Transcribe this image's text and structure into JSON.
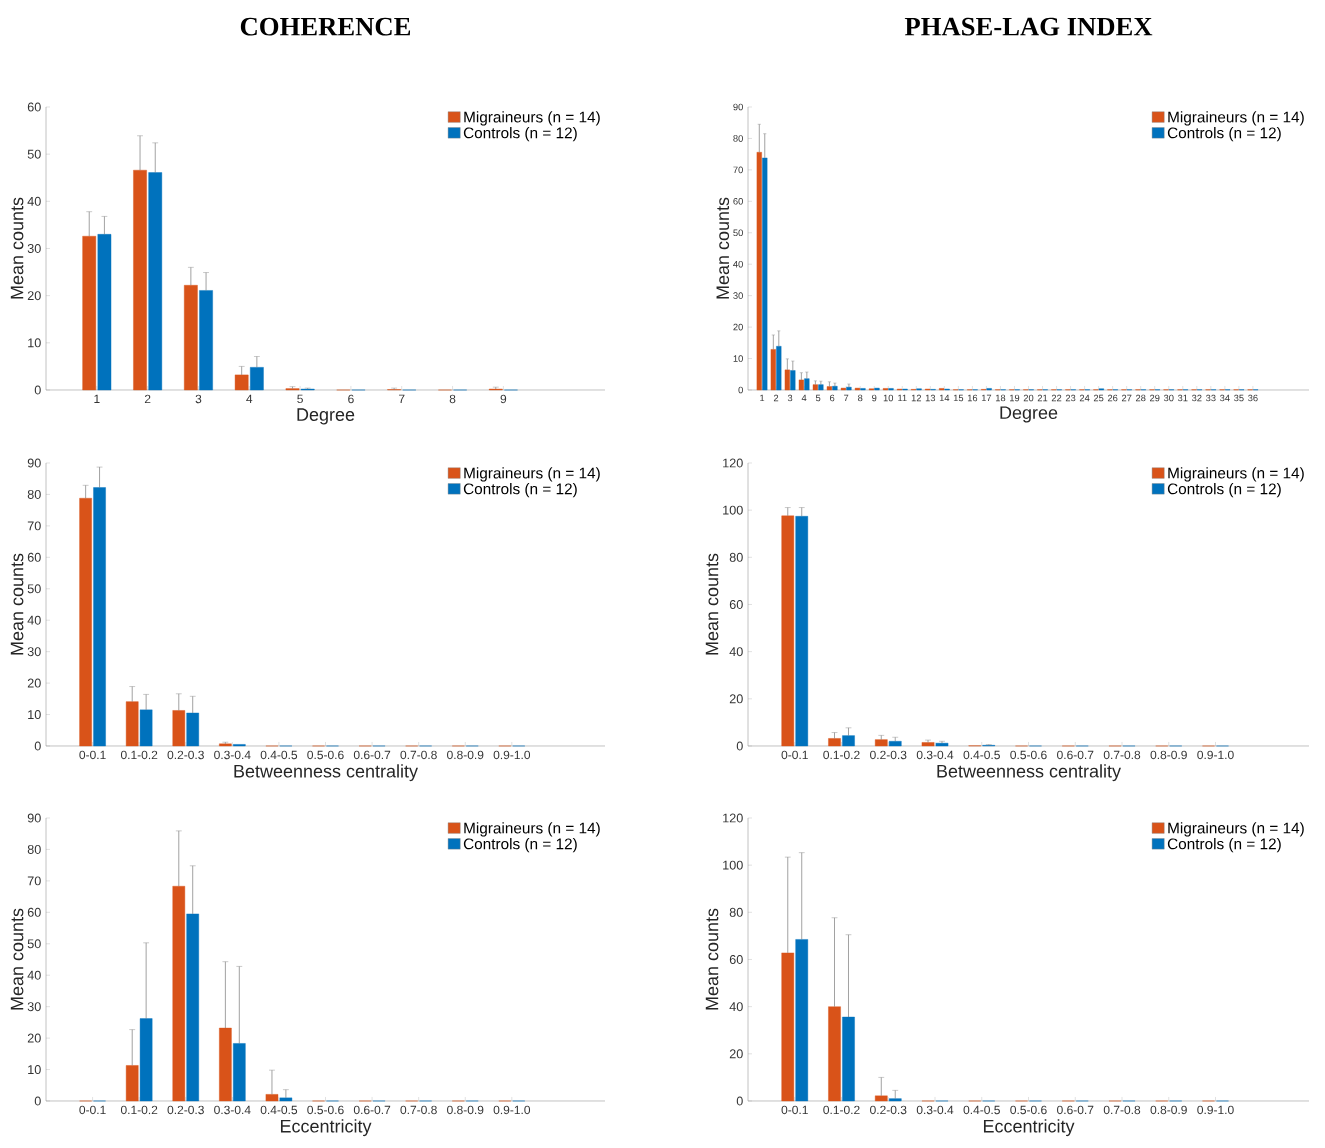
{
  "chart_data": [
    {
      "type": "bar",
      "title": "COHERENCE",
      "xlabel": "Degree",
      "ylabel": "Mean counts",
      "categories": [
        "1",
        "2",
        "3",
        "4",
        "5",
        "6",
        "7",
        "8",
        "9"
      ],
      "ylim": [
        0,
        60
      ],
      "yticks": [
        0,
        10,
        20,
        30,
        40,
        50,
        60
      ],
      "legend": "top right",
      "series": [
        {
          "name": "Migraineurs (n = 14)",
          "color": "#d95319",
          "values": [
            32.6,
            46.6,
            22.2,
            3.2,
            0.3,
            0,
            0.1,
            0,
            0.2
          ],
          "errors": [
            [
              32.6,
              37.8
            ],
            [
              46.6,
              53.9
            ],
            [
              22.2,
              26.0
            ],
            [
              3.2,
              5.0
            ],
            [
              0.3,
              0.7
            ],
            null,
            [
              0.1,
              0.4
            ],
            null,
            [
              0.2,
              0.6
            ]
          ]
        },
        {
          "name": "Controls (n = 12)",
          "color": "#0072bd",
          "values": [
            33.0,
            46.1,
            21.1,
            4.8,
            0.2,
            0,
            0,
            0,
            0
          ],
          "errors": [
            [
              33.0,
              36.8
            ],
            [
              46.1,
              52.4
            ],
            [
              21.1,
              24.9
            ],
            [
              4.8,
              7.1
            ],
            [
              0.2,
              0.4
            ],
            null,
            null,
            null,
            null
          ]
        }
      ]
    },
    {
      "type": "bar",
      "title": "PHASE-LAG INDEX",
      "xlabel": "Degree",
      "ylabel": "Mean counts",
      "categories": [
        "1",
        "2",
        "3",
        "4",
        "5",
        "6",
        "7",
        "8",
        "9",
        "10",
        "11",
        "12",
        "13",
        "14",
        "15",
        "16",
        "17",
        "18",
        "19",
        "20",
        "21",
        "22",
        "23",
        "24",
        "25",
        "26",
        "27",
        "28",
        "29",
        "30",
        "31",
        "32",
        "33",
        "34",
        "35",
        "36"
      ],
      "ylim": [
        0,
        90
      ],
      "yticks": [
        0,
        10,
        20,
        30,
        40,
        50,
        60,
        70,
        80,
        90
      ],
      "legend": "top right",
      "series": [
        {
          "name": "Migraineurs (n = 14)",
          "color": "#d95319",
          "values": [
            75.6,
            12.9,
            6.4,
            3.2,
            1.7,
            1.1,
            0.6,
            0.6,
            0.4,
            0.5,
            0.3,
            0.2,
            0.3,
            0.5,
            0.1,
            0.1,
            0.2,
            0.1,
            0.1,
            0.1,
            0.1,
            0.1,
            0.1,
            0.1,
            0.1,
            0.1,
            0.1,
            0.1,
            0.1,
            0.1,
            0.1,
            0.1,
            0.1,
            0.1,
            0.1,
            0.1
          ],
          "errors": [
            [
              75.6,
              84.5
            ],
            [
              12.9,
              17.5
            ],
            [
              6.4,
              9.9
            ],
            [
              3.2,
              5.5
            ],
            [
              1.7,
              2.9
            ],
            [
              1.1,
              2.6
            ],
            null,
            null,
            null,
            null,
            null,
            null,
            null,
            null,
            null,
            null,
            null,
            null,
            null,
            null,
            null,
            null,
            null,
            null,
            null,
            null,
            null,
            null,
            null,
            null,
            null,
            null,
            null,
            null,
            null,
            null
          ]
        },
        {
          "name": "Controls (n = 12)",
          "color": "#0072bd",
          "values": [
            73.8,
            13.9,
            6.2,
            3.6,
            1.7,
            1.2,
            0.9,
            0.5,
            0.6,
            0.5,
            0.3,
            0.4,
            0.2,
            0.3,
            0.1,
            0.1,
            0.5,
            0.1,
            0.1,
            0.1,
            0.1,
            0.1,
            0.1,
            0.1,
            0.4,
            0.1,
            0.1,
            0.1,
            0.1,
            0.1,
            0.1,
            0.1,
            0.1,
            0.1,
            0.1,
            0.1
          ],
          "errors": [
            [
              73.8,
              81.5
            ],
            [
              13.9,
              18.8
            ],
            [
              6.2,
              9.2
            ],
            [
              3.6,
              5.7
            ],
            [
              1.7,
              2.8
            ],
            [
              1.2,
              2.2
            ],
            [
              0.9,
              1.9
            ],
            null,
            null,
            null,
            null,
            null,
            null,
            null,
            null,
            null,
            null,
            null,
            null,
            null,
            null,
            null,
            null,
            null,
            null,
            null,
            null,
            null,
            null,
            null,
            null,
            null,
            null,
            null,
            null,
            null
          ]
        }
      ]
    },
    {
      "type": "bar",
      "xlabel": "Betweenness centrality",
      "ylabel": "Mean counts",
      "categories": [
        "0-0.1",
        "0.1-0.2",
        "0.2-0.3",
        "0.3-0.4",
        "0.4-0.5",
        "0.5-0.6",
        "0.6-0.7",
        "0.7-0.8",
        "0.8-0.9",
        "0.9-1.0"
      ],
      "ylim": [
        0,
        90
      ],
      "yticks": [
        0,
        10,
        20,
        30,
        40,
        50,
        60,
        70,
        80,
        90
      ],
      "legend": "top right",
      "series": [
        {
          "name": "Migraineurs (n = 14)",
          "color": "#d95319",
          "values": [
            78.8,
            14.1,
            11.3,
            0.7,
            0,
            0,
            0,
            0,
            0,
            0
          ],
          "errors": [
            [
              78.8,
              82.9
            ],
            [
              14.1,
              18.9
            ],
            [
              11.3,
              16.6
            ],
            [
              0.7,
              1.2
            ],
            null,
            null,
            null,
            null,
            null,
            null
          ]
        },
        {
          "name": "Controls (n = 12)",
          "color": "#0072bd",
          "values": [
            82.2,
            11.5,
            10.5,
            0.5,
            0,
            0,
            0,
            0,
            0,
            0
          ],
          "errors": [
            [
              82.2,
              88.7
            ],
            [
              11.5,
              16.4
            ],
            [
              10.5,
              15.8
            ],
            null,
            null,
            null,
            null,
            null,
            null,
            null
          ]
        }
      ]
    },
    {
      "type": "bar",
      "xlabel": "Betweenness centrality",
      "ylabel": "Mean counts",
      "categories": [
        "0-0.1",
        "0.1-0.2",
        "0.2-0.3",
        "0.3-0.4",
        "0.4-0.5",
        "0.5-0.6",
        "0.6-0.7",
        "0.7-0.8",
        "0.8-0.9",
        "0.9-1.0"
      ],
      "ylim": [
        0,
        120
      ],
      "yticks": [
        0,
        20,
        40,
        60,
        80,
        100,
        120
      ],
      "legend": "top right",
      "series": [
        {
          "name": "Migraineurs (n = 14)",
          "color": "#d95319",
          "values": [
            97.6,
            3.2,
            2.7,
            1.5,
            0.1,
            0,
            0,
            0,
            0,
            0
          ],
          "errors": [
            [
              97.6,
              101.1
            ],
            [
              3.2,
              5.7
            ],
            [
              2.7,
              4.5
            ],
            [
              1.5,
              2.5
            ],
            null,
            null,
            null,
            null,
            null,
            null
          ]
        },
        {
          "name": "Controls (n = 12)",
          "color": "#0072bd",
          "values": [
            97.4,
            4.4,
            2.0,
            1.2,
            0.3,
            0,
            0,
            0,
            0,
            0
          ],
          "errors": [
            [
              97.4,
              101.1
            ],
            [
              4.4,
              7.7
            ],
            [
              2.0,
              3.7
            ],
            [
              1.2,
              2.0
            ],
            [
              0.3,
              0.6
            ],
            null,
            null,
            null,
            null,
            null
          ]
        }
      ]
    },
    {
      "type": "bar",
      "xlabel": "Eccentricity",
      "ylabel": "Mean counts",
      "categories": [
        "0-0.1",
        "0.1-0.2",
        "0.2-0.3",
        "0.3-0.4",
        "0.4-0.5",
        "0.5-0.6",
        "0.6-0.7",
        "0.7-0.8",
        "0.8-0.9",
        "0.9-1.0"
      ],
      "ylim": [
        0,
        90
      ],
      "yticks": [
        0,
        10,
        20,
        30,
        40,
        50,
        60,
        70,
        80,
        90
      ],
      "legend": "top right",
      "series": [
        {
          "name": "Migraineurs (n = 14)",
          "color": "#d95319",
          "values": [
            0,
            11.3,
            68.3,
            23.2,
            2.1,
            0,
            0,
            0,
            0,
            0
          ],
          "errors": [
            null,
            [
              11.3,
              22.7
            ],
            [
              68.3,
              85.9
            ],
            [
              23.2,
              44.3
            ],
            [
              2.1,
              9.8
            ],
            null,
            null,
            null,
            null,
            null
          ]
        },
        {
          "name": "Controls (n = 12)",
          "color": "#0072bd",
          "values": [
            0,
            26.2,
            59.5,
            18.3,
            1.0,
            0,
            0,
            0,
            0,
            0
          ],
          "errors": [
            null,
            [
              26.2,
              50.3
            ],
            [
              59.5,
              74.8
            ],
            [
              18.3,
              42.8
            ],
            [
              1.0,
              3.6
            ],
            null,
            null,
            null,
            null,
            null
          ]
        }
      ]
    },
    {
      "type": "bar",
      "xlabel": "Eccentricity",
      "ylabel": "Mean counts",
      "categories": [
        "0-0.1",
        "0.1-0.2",
        "0.2-0.3",
        "0.3-0.4",
        "0.4-0.5",
        "0.5-0.6",
        "0.6-0.7",
        "0.7-0.8",
        "0.8-0.9",
        "0.9-1.0"
      ],
      "ylim": [
        0,
        120
      ],
      "yticks": [
        0,
        20,
        40,
        60,
        80,
        100,
        120
      ],
      "legend": "top right",
      "series": [
        {
          "name": "Migraineurs (n = 14)",
          "color": "#d95319",
          "values": [
            62.8,
            40.0,
            2.2,
            0,
            0,
            0,
            0,
            0,
            0,
            0
          ],
          "errors": [
            [
              62.8,
              103.4
            ],
            [
              40.0,
              77.7
            ],
            [
              2.2,
              10.0
            ],
            null,
            null,
            null,
            null,
            null,
            null,
            null
          ]
        },
        {
          "name": "Controls (n = 12)",
          "color": "#0072bd",
          "values": [
            68.5,
            35.6,
            1.0,
            0,
            0,
            0,
            0,
            0,
            0,
            0
          ],
          "errors": [
            [
              68.5,
              105.3
            ],
            [
              35.6,
              70.5
            ],
            [
              1.0,
              4.5
            ],
            null,
            null,
            null,
            null,
            null,
            null,
            null
          ]
        }
      ]
    }
  ]
}
